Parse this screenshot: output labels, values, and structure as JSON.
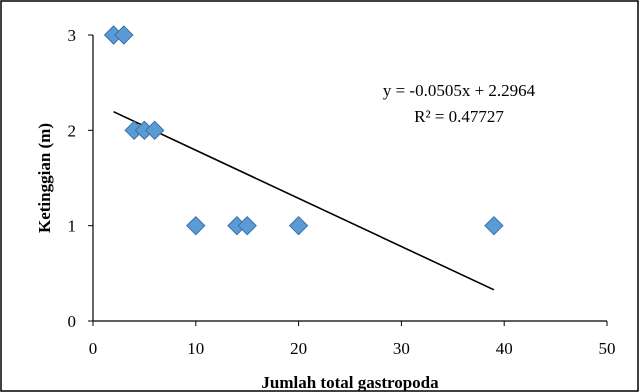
{
  "chart_data": {
    "type": "scatter",
    "xlabel": "Jumlah total gastropoda",
    "ylabel": "Ketinggian (m)",
    "xlim": [
      0,
      50
    ],
    "ylim": [
      0,
      3
    ],
    "x_ticks": [
      "0",
      "10",
      "20",
      "30",
      "40",
      "50"
    ],
    "y_ticks": [
      "0",
      "1",
      "2",
      "3"
    ],
    "points": [
      {
        "x": 2,
        "y": 3
      },
      {
        "x": 3,
        "y": 3
      },
      {
        "x": 4,
        "y": 2
      },
      {
        "x": 5,
        "y": 2
      },
      {
        "x": 6,
        "y": 2
      },
      {
        "x": 10,
        "y": 1
      },
      {
        "x": 14,
        "y": 1
      },
      {
        "x": 15,
        "y": 1
      },
      {
        "x": 20,
        "y": 1
      },
      {
        "x": 39,
        "y": 1
      }
    ],
    "trendline": {
      "type": "linear",
      "slope": -0.0505,
      "intercept": 2.2964,
      "x_range": [
        2,
        39
      ],
      "equation": "y = -0.0505x + 2.2964",
      "r_squared": "R² = 0.47727"
    },
    "marker_color": "#5b9bd5",
    "grid": false,
    "legend": "none"
  }
}
